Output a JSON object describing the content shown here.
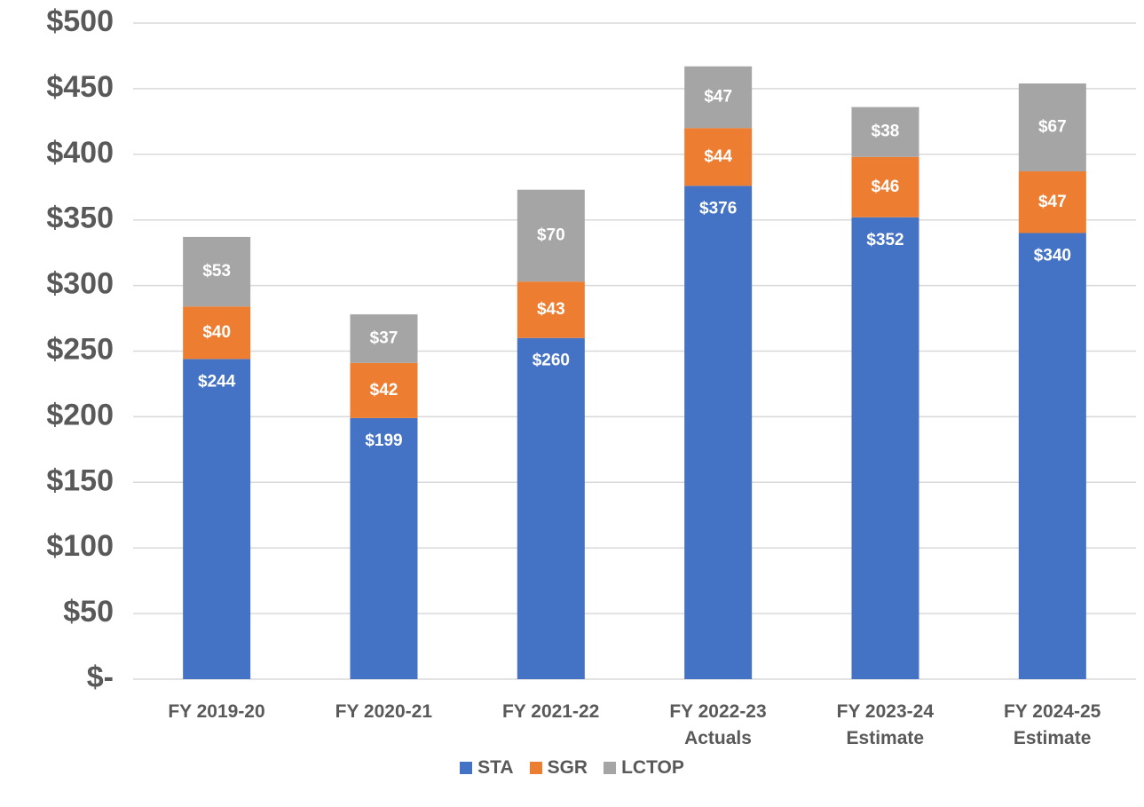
{
  "chart_data": {
    "type": "stacked_bar",
    "categories": [
      "FY 2019-20",
      "FY 2020-21",
      "FY 2021-22",
      "FY 2022-23\nActuals",
      "FY 2023-24\nEstimate",
      "FY 2024-25\nEstimate"
    ],
    "series": [
      {
        "name": "STA",
        "color": "#4472c4",
        "values": [
          244,
          199,
          260,
          376,
          352,
          340
        ],
        "value_labels": [
          "$244",
          "$199",
          "$260",
          "$376",
          "$352",
          "$340"
        ]
      },
      {
        "name": "SGR",
        "color": "#ed7d31",
        "values": [
          40,
          42,
          43,
          44,
          46,
          47
        ],
        "value_labels": [
          "$40",
          "$42",
          "$43",
          "$44",
          "$46",
          "$47"
        ]
      },
      {
        "name": "LCTOP",
        "color": "#a5a5a5",
        "values": [
          53,
          37,
          70,
          47,
          38,
          67
        ],
        "value_labels": [
          "$53",
          "$37",
          "$70",
          "$47",
          "$38",
          "$67"
        ]
      }
    ],
    "ylim": [
      0,
      500
    ],
    "yticks": [
      {
        "value": 0,
        "label": "$-"
      },
      {
        "value": 50,
        "label": "$50"
      },
      {
        "value": 100,
        "label": "$100"
      },
      {
        "value": 150,
        "label": "$150"
      },
      {
        "value": 200,
        "label": "$200"
      },
      {
        "value": 250,
        "label": "$250"
      },
      {
        "value": 300,
        "label": "$300"
      },
      {
        "value": 350,
        "label": "$350"
      },
      {
        "value": 400,
        "label": "$400"
      },
      {
        "value": 450,
        "label": "$450"
      },
      {
        "value": 500,
        "label": "$500"
      }
    ],
    "grid": true,
    "legend": "bottom"
  }
}
